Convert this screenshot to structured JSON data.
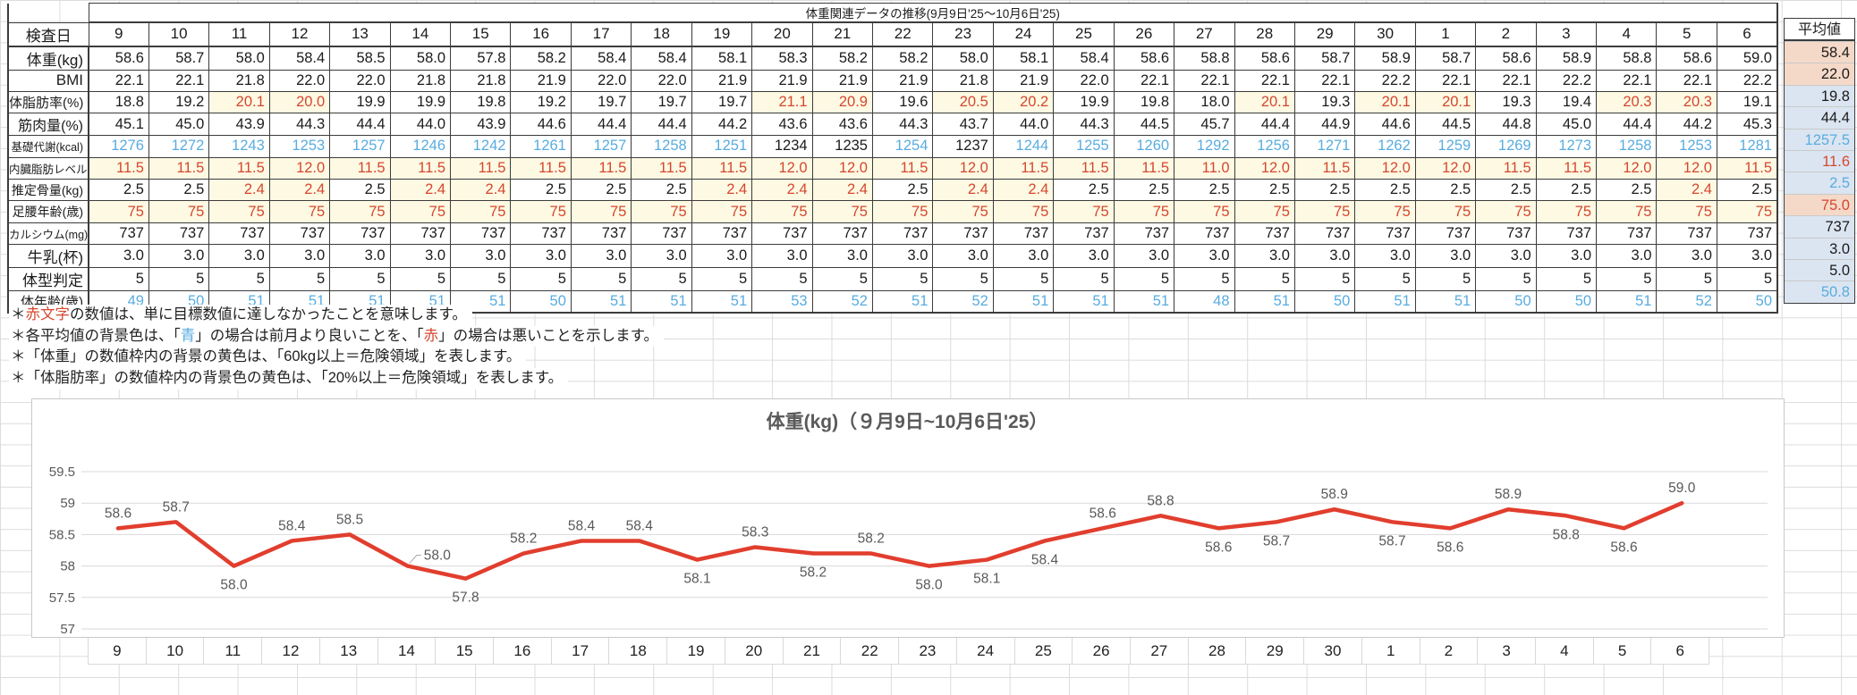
{
  "sheet_title": "体重関連データの推移(9月9日'25～10月6日'25)",
  "table": {
    "header_label": "検査日",
    "avg_label": "平均値",
    "dates": [
      "9",
      "10",
      "11",
      "12",
      "13",
      "14",
      "15",
      "16",
      "17",
      "18",
      "19",
      "20",
      "21",
      "22",
      "23",
      "24",
      "25",
      "26",
      "27",
      "28",
      "29",
      "30",
      "1",
      "2",
      "3",
      "4",
      "5",
      "6"
    ],
    "rows": [
      {
        "key": "weight",
        "label": "体重(kg)",
        "rule": "none",
        "values": [
          "58.6",
          "58.7",
          "58.0",
          "58.4",
          "58.5",
          "58.0",
          "57.8",
          "58.2",
          "58.4",
          "58.4",
          "58.1",
          "58.3",
          "58.2",
          "58.2",
          "58.0",
          "58.1",
          "58.4",
          "58.6",
          "58.8",
          "58.6",
          "58.7",
          "58.9",
          "58.7",
          "58.6",
          "58.9",
          "58.8",
          "58.6",
          "59.0"
        ],
        "avg": {
          "value": "58.4",
          "bg": "salmon",
          "color": "black"
        }
      },
      {
        "key": "bmi",
        "label": "BMI",
        "rule": "none",
        "values": [
          "22.1",
          "22.1",
          "21.8",
          "22.0",
          "22.0",
          "21.8",
          "21.8",
          "21.9",
          "22.0",
          "22.0",
          "21.9",
          "21.9",
          "21.9",
          "21.9",
          "21.8",
          "21.9",
          "22.0",
          "22.1",
          "22.1",
          "22.1",
          "22.1",
          "22.2",
          "22.1",
          "22.1",
          "22.2",
          "22.1",
          "22.1",
          "22.2"
        ],
        "avg": {
          "value": "22.0",
          "bg": "salmon",
          "color": "black"
        }
      },
      {
        "key": "body-fat",
        "label": "体脂肪率(%)",
        "rule": "danger:gte:20",
        "values": [
          "18.8",
          "19.2",
          "20.1",
          "20.0",
          "19.9",
          "19.9",
          "19.8",
          "19.2",
          "19.7",
          "19.7",
          "19.7",
          "21.1",
          "20.9",
          "19.6",
          "20.5",
          "20.2",
          "19.9",
          "19.8",
          "18.0",
          "20.1",
          "19.3",
          "20.1",
          "20.1",
          "19.3",
          "19.4",
          "20.3",
          "20.3",
          "19.1"
        ],
        "avg": {
          "value": "19.8",
          "bg": "blue",
          "color": "black"
        }
      },
      {
        "key": "muscle",
        "label": "筋肉量(%)",
        "rule": "none",
        "values": [
          "45.1",
          "45.0",
          "43.9",
          "44.3",
          "44.4",
          "44.0",
          "43.9",
          "44.6",
          "44.4",
          "44.4",
          "44.2",
          "43.6",
          "43.6",
          "44.3",
          "43.7",
          "44.0",
          "44.3",
          "44.5",
          "45.7",
          "44.4",
          "44.9",
          "44.6",
          "44.5",
          "44.8",
          "45.0",
          "44.4",
          "44.2",
          "45.3"
        ],
        "avg": {
          "value": "44.4",
          "bg": "blue",
          "color": "black"
        }
      },
      {
        "key": "basal-metabolism",
        "label": "基礎代謝(kcal)",
        "rule": "blue:gte:1240",
        "values": [
          "1276",
          "1272",
          "1243",
          "1253",
          "1257",
          "1246",
          "1242",
          "1261",
          "1257",
          "1258",
          "1251",
          "1234",
          "1235",
          "1254",
          "1237",
          "1244",
          "1255",
          "1260",
          "1292",
          "1256",
          "1271",
          "1262",
          "1259",
          "1269",
          "1273",
          "1258",
          "1253",
          "1281"
        ],
        "avg": {
          "value": "1257.5",
          "bg": "blue",
          "color": "blue"
        }
      },
      {
        "key": "visceral-fat",
        "label": "内臓脂肪レベル",
        "rule": "danger:all",
        "values": [
          "11.5",
          "11.5",
          "11.5",
          "12.0",
          "11.5",
          "11.5",
          "11.5",
          "11.5",
          "11.5",
          "11.5",
          "11.5",
          "12.0",
          "12.0",
          "11.5",
          "12.0",
          "11.5",
          "11.5",
          "11.5",
          "11.0",
          "12.0",
          "11.5",
          "12.0",
          "12.0",
          "11.5",
          "11.5",
          "12.0",
          "12.0",
          "11.5"
        ],
        "avg": {
          "value": "11.6",
          "bg": "blue",
          "color": "red"
        }
      },
      {
        "key": "bone-mass",
        "label": "推定骨量(kg)",
        "rule": "danger:lte:2.4",
        "values": [
          "2.5",
          "2.5",
          "2.4",
          "2.4",
          "2.5",
          "2.4",
          "2.4",
          "2.5",
          "2.5",
          "2.5",
          "2.4",
          "2.4",
          "2.4",
          "2.5",
          "2.4",
          "2.4",
          "2.5",
          "2.5",
          "2.5",
          "2.5",
          "2.5",
          "2.5",
          "2.5",
          "2.5",
          "2.5",
          "2.5",
          "2.4",
          "2.5"
        ],
        "avg": {
          "value": "2.5",
          "bg": "blue",
          "color": "blue"
        }
      },
      {
        "key": "leg-age",
        "label": "足腰年齢(歳)",
        "rule": "danger:all",
        "values": [
          "75",
          "75",
          "75",
          "75",
          "75",
          "75",
          "75",
          "75",
          "75",
          "75",
          "75",
          "75",
          "75",
          "75",
          "75",
          "75",
          "75",
          "75",
          "75",
          "75",
          "75",
          "75",
          "75",
          "75",
          "75",
          "75",
          "75",
          "75"
        ],
        "avg": {
          "value": "75.0",
          "bg": "salmon",
          "color": "red"
        }
      },
      {
        "key": "calcium",
        "label": "カルシウム(mg)",
        "rule": "none",
        "values": [
          "737",
          "737",
          "737",
          "737",
          "737",
          "737",
          "737",
          "737",
          "737",
          "737",
          "737",
          "737",
          "737",
          "737",
          "737",
          "737",
          "737",
          "737",
          "737",
          "737",
          "737",
          "737",
          "737",
          "737",
          "737",
          "737",
          "737",
          "737"
        ],
        "avg": {
          "value": "737",
          "bg": "blue",
          "color": "black"
        }
      },
      {
        "key": "milk",
        "label": "牛乳(杯)",
        "rule": "none",
        "values": [
          "3.0",
          "3.0",
          "3.0",
          "3.0",
          "3.0",
          "3.0",
          "3.0",
          "3.0",
          "3.0",
          "3.0",
          "3.0",
          "3.0",
          "3.0",
          "3.0",
          "3.0",
          "3.0",
          "3.0",
          "3.0",
          "3.0",
          "3.0",
          "3.0",
          "3.0",
          "3.0",
          "3.0",
          "3.0",
          "3.0",
          "3.0",
          "3.0"
        ],
        "avg": {
          "value": "3.0",
          "bg": "blue",
          "color": "black"
        }
      },
      {
        "key": "body-type",
        "label": "体型判定",
        "rule": "none",
        "values": [
          "5",
          "5",
          "5",
          "5",
          "5",
          "5",
          "5",
          "5",
          "5",
          "5",
          "5",
          "5",
          "5",
          "5",
          "5",
          "5",
          "5",
          "5",
          "5",
          "5",
          "5",
          "5",
          "5",
          "5",
          "5",
          "5",
          "5",
          "5"
        ],
        "avg": {
          "value": "5.0",
          "bg": "blue",
          "color": "black"
        }
      },
      {
        "key": "body-age",
        "label": "体年齢(歳)",
        "rule": "blue:all",
        "values": [
          "49",
          "50",
          "51",
          "51",
          "51",
          "51",
          "51",
          "50",
          "51",
          "51",
          "51",
          "53",
          "52",
          "51",
          "52",
          "51",
          "51",
          "51",
          "48",
          "51",
          "50",
          "51",
          "51",
          "50",
          "50",
          "51",
          "52",
          "50"
        ],
        "avg": {
          "value": "50.8",
          "bg": "blue",
          "color": "blue"
        }
      }
    ]
  },
  "footnotes": [
    [
      {
        "text": "＊"
      },
      {
        "text": "赤文字",
        "color": "red"
      },
      {
        "text": "の数値は、単に目標数値に達しなかったことを意味します。"
      }
    ],
    [
      {
        "text": "＊各平均値の背景色は、「"
      },
      {
        "text": "青",
        "color": "blue"
      },
      {
        "text": "」の場合は前月より良いことを、「"
      },
      {
        "text": "赤",
        "color": "red"
      },
      {
        "text": "」の場合は悪いことを示します。"
      }
    ],
    [
      {
        "text": "＊「体重」の数値枠内の背景の黄色は、「60kg以上＝危険領域」を表します。"
      }
    ],
    [
      {
        "text": "＊「体脂肪率」の数値枠内の背景色の黄色は、「20%以上＝危険領域」を表します。"
      }
    ]
  ],
  "chart_data": {
    "type": "line",
    "title": "体重(kg)（９月9日~10月6日'25）",
    "x": [
      "9",
      "10",
      "11",
      "12",
      "13",
      "14",
      "15",
      "16",
      "17",
      "18",
      "19",
      "20",
      "21",
      "22",
      "23",
      "24",
      "25",
      "26",
      "27",
      "28",
      "29",
      "30",
      "1",
      "2",
      "3",
      "4",
      "5",
      "6"
    ],
    "values": [
      58.6,
      58.7,
      58.0,
      58.4,
      58.5,
      58.0,
      57.8,
      58.2,
      58.4,
      58.4,
      58.1,
      58.3,
      58.2,
      58.2,
      58.0,
      58.1,
      58.4,
      58.6,
      58.8,
      58.6,
      58.7,
      58.9,
      58.7,
      58.6,
      58.9,
      58.8,
      58.6,
      59.0
    ],
    "data_labels": [
      "58.6",
      "58.7",
      "58.0",
      "58.4",
      "58.5",
      "58.0",
      "57.8",
      "58.2",
      "58.4",
      "58.4",
      "58.1",
      "58.3",
      "58.2",
      "58.2",
      "58.0",
      "58.1",
      "58.4",
      "58.6",
      "58.8",
      "58.6",
      "58.7",
      "58.9",
      "58.7",
      "58.6",
      "58.9",
      "58.8",
      "58.6",
      "59.0"
    ],
    "label_side": [
      "above",
      "above",
      "below",
      "above",
      "above",
      "right",
      "below",
      "above",
      "above",
      "above",
      "below",
      "above",
      "below",
      "above",
      "below",
      "below",
      "below",
      "above",
      "above",
      "below",
      "below",
      "above",
      "below",
      "below",
      "above",
      "below",
      "below",
      "above"
    ],
    "ylim": [
      57,
      59.5
    ],
    "yticks": [
      "57",
      "57.5",
      "58",
      "58.5",
      "59",
      "59.5"
    ],
    "line_color": "#e13e2e",
    "grid": true,
    "legend": "none"
  }
}
